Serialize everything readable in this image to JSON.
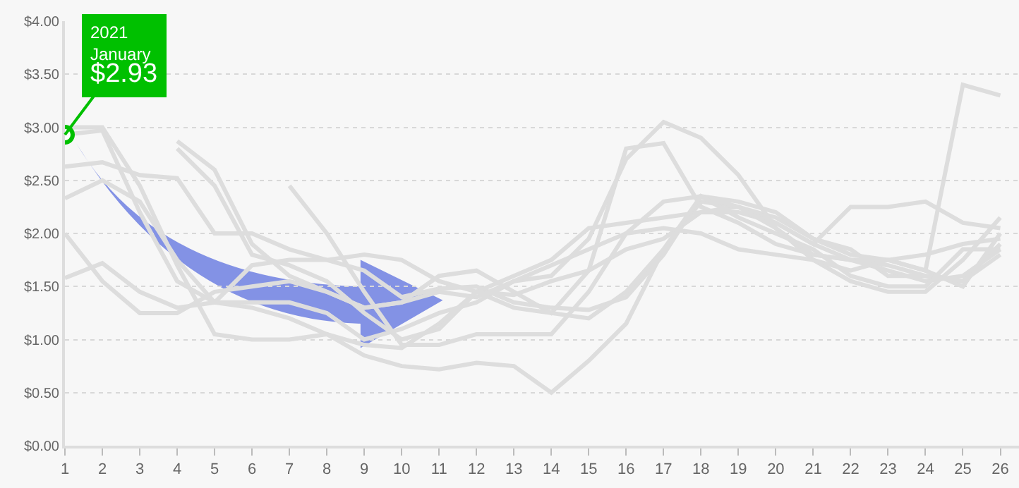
{
  "chart_data": {
    "type": "line",
    "x": [
      1,
      2,
      3,
      4,
      5,
      6,
      7,
      8,
      9,
      10,
      11,
      12,
      13,
      14,
      15,
      16,
      17,
      18,
      19,
      20,
      21,
      22,
      23,
      24,
      25,
      26
    ],
    "xlim": [
      1,
      26.5
    ],
    "xticks": [
      1,
      2,
      3,
      4,
      5,
      6,
      7,
      8,
      9,
      10,
      11,
      12,
      13,
      14,
      15,
      16,
      17,
      18,
      19,
      20,
      21,
      22,
      23,
      24,
      25,
      26
    ],
    "ylim": [
      0,
      4
    ],
    "yticks": [
      {
        "value": 0,
        "label": "$0.00"
      },
      {
        "value": 0.5,
        "label": "$0.50"
      },
      {
        "value": 1,
        "label": "$1.00"
      },
      {
        "value": 1.5,
        "label": "$1.50"
      },
      {
        "value": 2,
        "label": "$2.00"
      },
      {
        "value": 2.5,
        "label": "$2.50"
      },
      {
        "value": 3,
        "label": "$3.00"
      },
      {
        "value": 3.5,
        "label": "$3.50"
      },
      {
        "value": 4,
        "label": "$4.00"
      }
    ],
    "grid": "y",
    "marker": "none",
    "line_style": "solid",
    "series": [
      {
        "color": "#dddddd",
        "values": [
          2.93,
          2.97,
          2.2,
          1.55,
          1.35,
          1.3,
          1.2,
          1.05,
          0.95,
          0.92,
          1.15,
          1.45,
          1.6,
          1.75,
          2.05,
          2.1,
          2.15,
          2.2,
          2.25,
          2.1,
          1.9,
          1.75,
          1.7,
          1.6,
          1.55,
          1.9
        ]
      },
      {
        "color": "#dddddd",
        "values": [
          3.0,
          3.0,
          2.45,
          1.7,
          1.05,
          1.0,
          1.0,
          1.05,
          0.85,
          0.75,
          0.72,
          0.78,
          0.75,
          0.5,
          0.8,
          1.15,
          1.85,
          2.3,
          2.25,
          2.15,
          1.95,
          1.8,
          1.75,
          1.65,
          1.5,
          2.0
        ]
      },
      {
        "color": "#dddddd",
        "values": [
          2.63,
          2.67,
          2.55,
          2.52,
          2.0,
          2.0,
          1.85,
          1.75,
          1.65,
          1.4,
          1.48,
          1.5,
          1.35,
          1.3,
          1.28,
          1.4,
          1.8,
          2.35,
          2.3,
          2.2,
          1.95,
          1.85,
          1.6,
          1.6,
          1.55,
          1.8
        ]
      },
      {
        "color": "#dddddd",
        "values": [
          2.33,
          2.5,
          2.3,
          1.75,
          1.35,
          1.35,
          1.35,
          1.25,
          1.0,
          1.1,
          1.25,
          1.35,
          1.55,
          1.6,
          1.95,
          2.7,
          3.05,
          2.9,
          2.55,
          2.05,
          1.75,
          1.55,
          1.45,
          1.45,
          1.75,
          2.15
        ]
      },
      {
        "color": "#dddddd",
        "values": [
          2.0,
          1.55,
          1.25,
          1.25,
          1.45,
          1.5,
          1.55,
          1.45,
          1.3,
          1.35,
          1.6,
          1.65,
          1.45,
          1.25,
          1.65,
          2.8,
          2.85,
          2.25,
          2.1,
          1.9,
          1.8,
          1.75,
          1.75,
          1.65,
          3.4,
          3.3
        ]
      },
      {
        "color": "#dddddd",
        "values": [
          1.58,
          1.72,
          1.45,
          1.3,
          1.35,
          1.7,
          1.75,
          1.75,
          1.8,
          1.75,
          1.55,
          1.45,
          1.42,
          1.55,
          1.65,
          1.85,
          1.95,
          2.2,
          2.2,
          2.1,
          1.9,
          2.25,
          2.25,
          2.3,
          2.1,
          2.05
        ]
      },
      {
        "color": "#dddddd",
        "values": [
          null,
          null,
          null,
          2.87,
          2.6,
          1.9,
          1.6,
          1.45,
          1.3,
          1.35,
          1.45,
          1.4,
          1.55,
          1.7,
          1.85,
          2.0,
          2.3,
          2.35,
          2.25,
          2.05,
          1.8,
          1.75,
          1.65,
          1.55,
          1.6,
          1.85
        ]
      },
      {
        "color": "#dddddd",
        "values": [
          null,
          null,
          null,
          2.8,
          2.45,
          1.8,
          1.7,
          1.55,
          1.25,
          1.0,
          1.1,
          1.45,
          1.3,
          1.25,
          1.2,
          1.45,
          1.85,
          2.35,
          2.15,
          2.0,
          1.85,
          1.6,
          1.5,
          1.5,
          1.85,
          1.85
        ]
      },
      {
        "color": "#dddddd",
        "values": [
          null,
          null,
          null,
          null,
          null,
          null,
          2.45,
          2.0,
          1.45,
          0.95,
          0.95,
          1.05,
          1.05,
          1.05,
          1.45,
          2.0,
          2.05,
          2.0,
          1.85,
          1.8,
          1.75,
          1.65,
          1.75,
          1.8,
          1.9,
          1.95
        ]
      }
    ],
    "annotations": [
      {
        "text": "2021\nJanuary\n$2.93",
        "x": 1,
        "y": 2.93
      }
    ]
  }
}
